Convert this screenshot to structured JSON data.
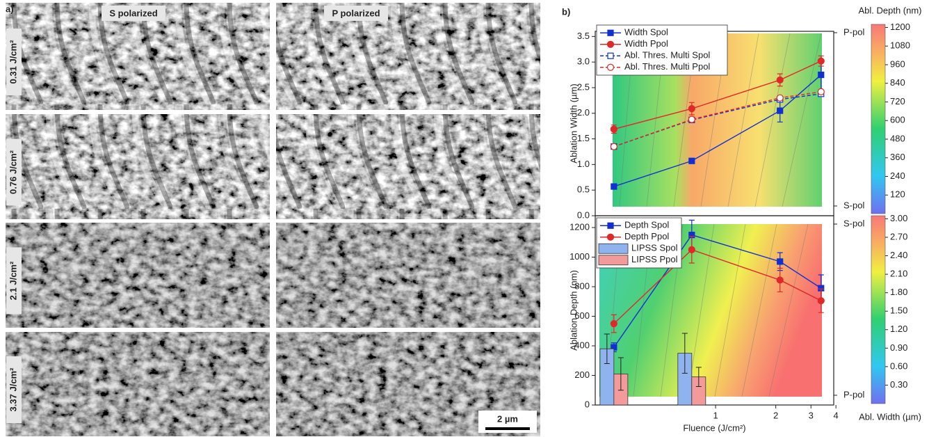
{
  "panel_a": {
    "label": "a)",
    "columns": [
      "S polarized",
      "P polarized"
    ],
    "rows": [
      "0.31 J/cm²",
      "0.76 J/cm²",
      "2.1 J/cm²",
      "3.37 J/cm²"
    ],
    "scale_bar": "2 µm"
  },
  "panel_b": {
    "label": "b)"
  },
  "chart_data": [
    {
      "type": "line",
      "y_label": "Ablation Width (µm)",
      "xscale": "log",
      "xlim": [
        0.25,
        3.9
      ],
      "ylim": [
        0,
        3.6
      ],
      "yticks": [
        {
          "value": 0,
          "label": "0.0"
        },
        0.5,
        {
          "value": 1,
          "label": "1.0"
        },
        1.5,
        {
          "value": 2,
          "label": "2.0"
        },
        2.5,
        {
          "value": 3,
          "label": "3.0"
        },
        3.5
      ],
      "right_labels": [
        "S-pol",
        "P-pol"
      ],
      "legend": "upper left",
      "colorbar": {
        "label": "Abl. Depth (nm)",
        "lim": [
          0,
          1220
        ],
        "ticks": [
          120,
          240,
          360,
          480,
          600,
          720,
          840,
          960,
          1080,
          1200
        ]
      },
      "series": [
        {
          "name": "Width Spol",
          "color": "#1030d0",
          "style": "solid",
          "marker": "square",
          "filled": true,
          "x": [
            0.31,
            0.76,
            2.1,
            3.37
          ],
          "values": [
            0.57,
            1.07,
            2.05,
            2.75
          ],
          "errors": [
            0.05,
            0.05,
            0.22,
            0.3
          ]
        },
        {
          "name": "Width Ppol",
          "color": "#e02828",
          "style": "solid",
          "marker": "circle",
          "filled": true,
          "x": [
            0.31,
            0.76,
            2.1,
            3.37
          ],
          "values": [
            1.69,
            2.09,
            2.65,
            3.02
          ],
          "errors": [
            0.08,
            0.12,
            0.12,
            0.1
          ]
        },
        {
          "name": "Abl. Thres. Multi Spol",
          "color": "#1030d0",
          "style": "dashed",
          "marker": "square",
          "filled": false,
          "x": [
            0.31,
            0.76,
            2.1,
            3.37
          ],
          "values": [
            1.35,
            1.87,
            2.27,
            2.38
          ]
        },
        {
          "name": "Abl. Thres. Multi Ppol",
          "color": "#e02828",
          "style": "dashed",
          "marker": "circle",
          "filled": false,
          "x": [
            0.31,
            0.76,
            2.1,
            3.37
          ],
          "values": [
            1.35,
            1.88,
            2.3,
            2.42
          ]
        }
      ]
    },
    {
      "type": "line",
      "y_label": "Ablation Depth (nm)",
      "x_label": "Fluence (J/cm²)",
      "xscale": "log",
      "xlim": [
        0.25,
        3.9
      ],
      "ylim": [
        0,
        1280
      ],
      "xticks": [
        1,
        2,
        3,
        4
      ],
      "yticks": [
        0,
        200,
        400,
        600,
        800,
        1000,
        1200
      ],
      "right_labels": [
        "P-pol",
        "S-pol"
      ],
      "legend": "upper left",
      "colorbar": {
        "label": "Abl. Width (µm)",
        "lim": [
          0,
          3.05
        ],
        "ticks": [
          {
            "value": 0.3,
            "label": "0.30"
          },
          {
            "value": 0.6,
            "label": "0.60"
          },
          {
            "value": 0.9,
            "label": "0.90"
          },
          {
            "value": 1.2,
            "label": "1.20"
          },
          {
            "value": 1.5,
            "label": "1.50"
          },
          {
            "value": 1.8,
            "label": "1.80"
          },
          {
            "value": 2.1,
            "label": "2.10"
          },
          {
            "value": 2.4,
            "label": "2.40"
          },
          {
            "value": 2.7,
            "label": "2.70"
          },
          {
            "value": 3,
            "label": "3.00"
          }
        ]
      },
      "series": [
        {
          "name": "Depth Spol",
          "type": "line",
          "color": "#1030d0",
          "style": "solid",
          "marker": "square",
          "filled": true,
          "x": [
            0.31,
            0.76,
            2.1,
            3.37
          ],
          "values": [
            390,
            1150,
            970,
            790
          ],
          "errors": [
            30,
            100,
            60,
            90
          ]
        },
        {
          "name": "Depth Ppol",
          "type": "line",
          "color": "#e02828",
          "style": "solid",
          "marker": "circle",
          "filled": true,
          "x": [
            0.31,
            0.76,
            2.1,
            3.37
          ],
          "values": [
            550,
            1050,
            845,
            705
          ],
          "errors": [
            60,
            90,
            80,
            80
          ]
        },
        {
          "name": "LIPSS Spol",
          "type": "bar",
          "color": "#8fb3ee",
          "x": [
            0.31,
            0.76
          ],
          "values": [
            380,
            350
          ],
          "errors": [
            100,
            135
          ]
        },
        {
          "name": "LIPSS Ppol",
          "type": "bar",
          "color": "#f39a9a",
          "x": [
            0.31,
            0.76
          ],
          "values": [
            210,
            190
          ],
          "errors": [
            110,
            65
          ]
        }
      ]
    }
  ]
}
